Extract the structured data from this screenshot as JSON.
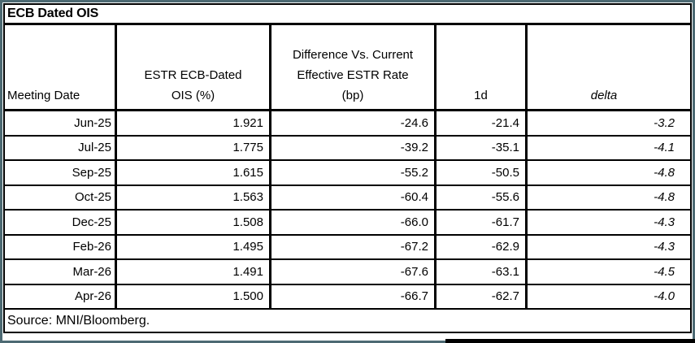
{
  "title": "ECB Dated OIS",
  "table": {
    "headers": {
      "meeting_date": "Meeting Date",
      "ois_line1": "ESTR ECB-Dated",
      "ois_line2": "OIS (%)",
      "diff_line1": "Difference Vs. Current",
      "diff_line2": "Effective ESTR Rate",
      "diff_line3": "(bp)",
      "one_d": "1d",
      "delta": "delta"
    },
    "rows": [
      {
        "date": "Jun-25",
        "ois": "1.921",
        "diff": "-24.6",
        "d1": "-21.4",
        "delta": "-3.2"
      },
      {
        "date": "Jul-25",
        "ois": "1.775",
        "diff": "-39.2",
        "d1": "-35.1",
        "delta": "-4.1"
      },
      {
        "date": "Sep-25",
        "ois": "1.615",
        "diff": "-55.2",
        "d1": "-50.5",
        "delta": "-4.8"
      },
      {
        "date": "Oct-25",
        "ois": "1.563",
        "diff": "-60.4",
        "d1": "-55.6",
        "delta": "-4.8"
      },
      {
        "date": "Dec-25",
        "ois": "1.508",
        "diff": "-66.0",
        "d1": "-61.7",
        "delta": "-4.3"
      },
      {
        "date": "Feb-26",
        "ois": "1.495",
        "diff": "-67.2",
        "d1": "-62.9",
        "delta": "-4.3"
      },
      {
        "date": "Mar-26",
        "ois": "1.491",
        "diff": "-67.6",
        "d1": "-63.1",
        "delta": "-4.5"
      },
      {
        "date": "Apr-26",
        "ois": "1.500",
        "diff": "-66.7",
        "d1": "-62.7",
        "delta": "-4.0"
      }
    ]
  },
  "source": "Source: MNI/Bloomberg.",
  "colors": {
    "frame": "#4d6a73",
    "table_border": "#000000",
    "background": "#ffffff",
    "text": "#000000"
  },
  "chart_data": {
    "type": "table",
    "title": "ECB Dated OIS",
    "columns": [
      "Meeting Date",
      "ESTR ECB-Dated OIS (%)",
      "Difference Vs. Current Effective ESTR Rate (bp)",
      "1d",
      "delta"
    ],
    "rows": [
      [
        "Jun-25",
        1.921,
        -24.6,
        -21.4,
        -3.2
      ],
      [
        "Jul-25",
        1.775,
        -39.2,
        -35.1,
        -4.1
      ],
      [
        "Sep-25",
        1.615,
        -55.2,
        -50.5,
        -4.8
      ],
      [
        "Oct-25",
        1.563,
        -60.4,
        -55.6,
        -4.8
      ],
      [
        "Dec-25",
        1.508,
        -66.0,
        -61.7,
        -4.3
      ],
      [
        "Feb-26",
        1.495,
        -67.2,
        -62.9,
        -4.3
      ],
      [
        "Mar-26",
        1.491,
        -67.6,
        -63.1,
        -4.5
      ],
      [
        "Apr-26",
        1.5,
        -66.7,
        -62.7,
        -4.0
      ]
    ],
    "source": "Source: MNI/Bloomberg."
  }
}
